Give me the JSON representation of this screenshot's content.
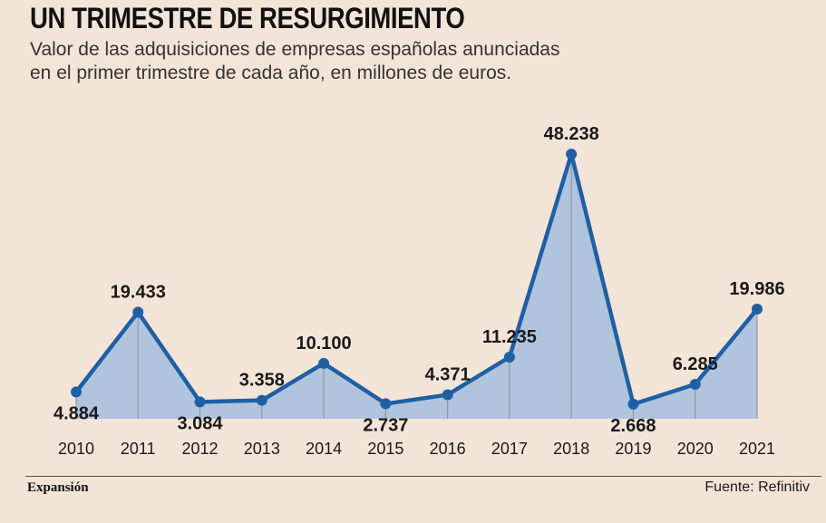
{
  "header": {
    "title": "UN TRIMESTRE DE RESURGIMIENTO",
    "subtitle_line1": "Valor de las adquisiciones de empresas españolas anunciadas",
    "subtitle_line2": "en el primer trimestre de cada año, en millones de euros."
  },
  "footer": {
    "brand": "Expansión",
    "source": "Fuente: Refinitiv"
  },
  "colors": {
    "background": "#f3e4d8",
    "line": "#1f5fa3",
    "area": "#b0c4de",
    "gridline": "#8e8e8e"
  },
  "chart_data": {
    "type": "area",
    "title": "UN TRIMESTRE DE RESURGIMIENTO",
    "subtitle": "Valor de las adquisiciones de empresas españolas anunciadas en el primer trimestre de cada año, en millones de euros.",
    "xlabel": "",
    "ylabel": "",
    "categories": [
      "2010",
      "2011",
      "2012",
      "2013",
      "2014",
      "2015",
      "2016",
      "2017",
      "2018",
      "2019",
      "2020",
      "2021"
    ],
    "values": [
      4884,
      19433,
      3084,
      3358,
      10100,
      2737,
      4371,
      11235,
      48238,
      2668,
      6285,
      19986
    ],
    "data_labels": [
      "4.884",
      "19.433",
      "3.084",
      "3.358",
      "10.100",
      "2.737",
      "4.371",
      "11.235",
      "48.238",
      "2.668",
      "6.285",
      "19.986"
    ],
    "label_positions": [
      "below",
      "above",
      "below",
      "above",
      "above",
      "below",
      "above",
      "above",
      "above",
      "below",
      "above",
      "above"
    ],
    "grid": "vertical",
    "legend": "none"
  }
}
